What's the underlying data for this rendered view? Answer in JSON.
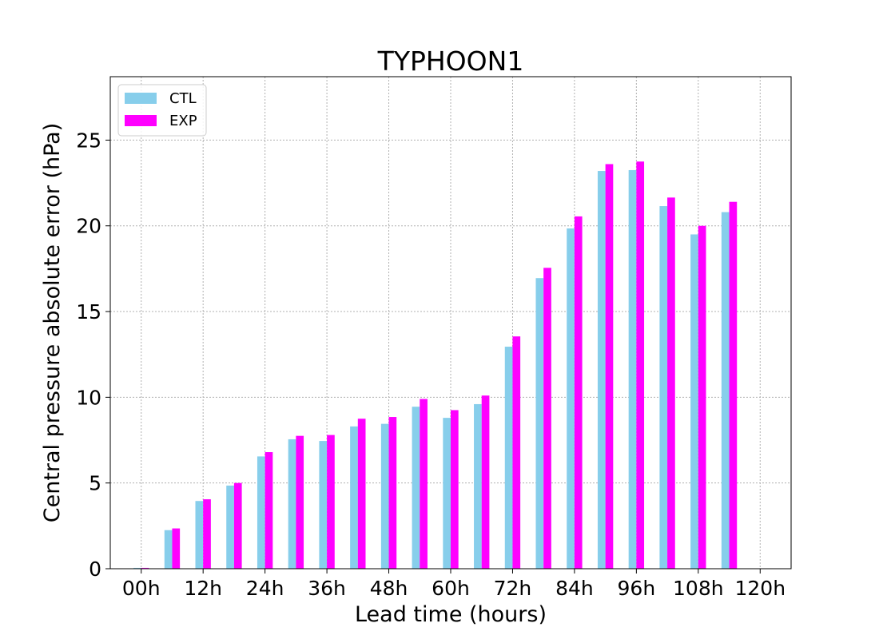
{
  "chart_data": {
    "type": "bar",
    "title": "TYPHOON1",
    "xlabel": "Lead time (hours)",
    "ylabel": "Central pressure absolute error (hPa)",
    "x_tick_labels": [
      "00h",
      "12h",
      "24h",
      "36h",
      "48h",
      "60h",
      "72h",
      "84h",
      "96h",
      "108h",
      "120h"
    ],
    "x_tick_positions": [
      0,
      12,
      24,
      36,
      48,
      60,
      72,
      84,
      96,
      108,
      120
    ],
    "x_step_hours": 6,
    "xlim": [
      -6,
      126
    ],
    "ylim": [
      0,
      28.7
    ],
    "y_ticks": [
      0,
      5,
      10,
      15,
      20,
      25
    ],
    "grid": true,
    "legend_position": "top-left",
    "x": [
      0,
      6,
      12,
      18,
      24,
      30,
      36,
      42,
      48,
      54,
      60,
      66,
      72,
      78,
      84,
      90,
      96,
      102,
      108,
      114
    ],
    "series": [
      {
        "name": "CTL",
        "color": "#87ceeb",
        "values": [
          0.05,
          2.25,
          3.95,
          4.85,
          6.55,
          7.55,
          7.45,
          8.3,
          8.45,
          9.45,
          8.8,
          9.6,
          12.95,
          16.95,
          19.85,
          23.2,
          23.25,
          21.15,
          19.5,
          20.8
        ]
      },
      {
        "name": "EXP",
        "color": "#ff00ff",
        "values": [
          0.05,
          2.35,
          4.05,
          5.0,
          6.8,
          7.75,
          7.8,
          8.75,
          8.85,
          9.9,
          9.25,
          10.1,
          13.55,
          17.55,
          20.55,
          23.6,
          23.75,
          21.65,
          20.0,
          21.4
        ]
      }
    ]
  }
}
